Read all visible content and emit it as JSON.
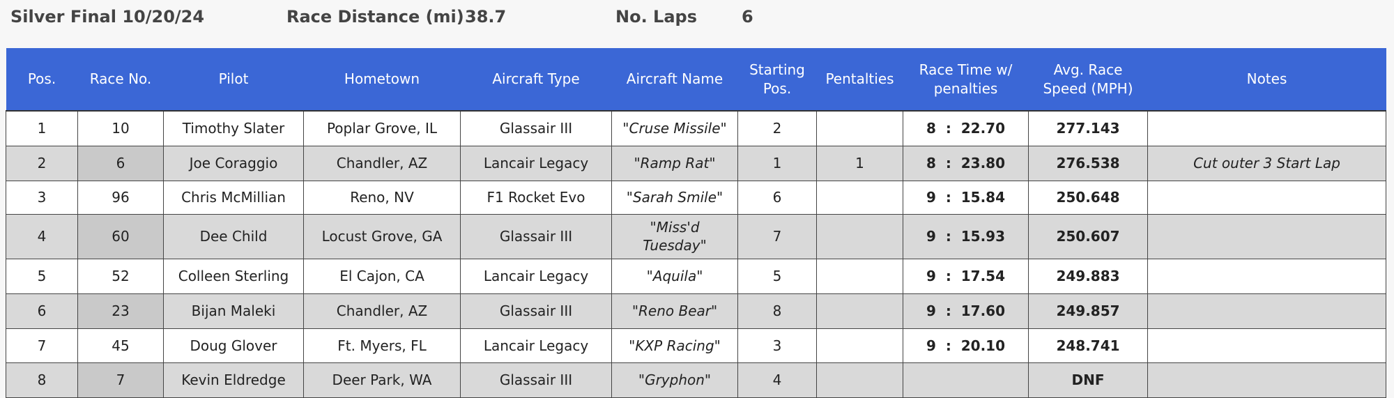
{
  "header": {
    "title": "Silver Final 10/20/24",
    "distance_label": "Race Distance (mi)",
    "distance": "38.7",
    "laps_label": "No. Laps",
    "laps": "6"
  },
  "table": {
    "columns": [
      "Pos.",
      "Race No.",
      "Pilot",
      "Hometown",
      "Aircraft Type",
      "Aircraft Name",
      "Starting Pos.",
      "Pentalties",
      "Race Time w/ penalties",
      "Avg. Race Speed (MPH)",
      "Notes"
    ],
    "rows": [
      [
        1,
        10,
        "Timothy Slater",
        "Poplar Grove, IL",
        "Glassair III",
        "\"Cruse Missile\"",
        2,
        null,
        "8  :  22.70",
        277.143,
        null
      ],
      [
        2,
        6,
        "Joe Coraggio",
        "Chandler, AZ",
        "Lancair Legacy",
        "\"Ramp Rat\"",
        1,
        1,
        "8  :  23.80",
        276.538,
        "Cut outer 3 Start Lap"
      ],
      [
        3,
        96,
        "Chris McMillian",
        "Reno, NV",
        "F1 Rocket Evo",
        "\"Sarah Smile\"",
        6,
        null,
        "9  :  15.84",
        250.648,
        null
      ],
      [
        4,
        60,
        "Dee Child",
        "Locust Grove, GA",
        "Glassair III",
        "\"Miss'd Tuesday\"",
        7,
        null,
        "9  :  15.93",
        250.607,
        null
      ],
      [
        5,
        52,
        "Colleen Sterling",
        "El Cajon, CA",
        "Lancair Legacy",
        "\"Aquila\"",
        5,
        null,
        "9  :  17.54",
        249.883,
        null
      ],
      [
        6,
        23,
        "Bijan Maleki",
        "Chandler, AZ",
        "Glassair III",
        "\"Reno Bear\"",
        8,
        null,
        "9  :  17.60",
        249.857,
        null
      ],
      [
        7,
        45,
        "Doug Glover",
        "Ft. Myers, FL",
        "Lancair Legacy",
        "\"KXP Racing\"",
        3,
        null,
        "9  :  20.10",
        248.741,
        null
      ],
      [
        8,
        7,
        "Kevin Eldredge",
        "Deer Park, WA",
        "Glassair III",
        "\"Gryphon\"",
        4,
        null,
        null,
        "DNF",
        null
      ]
    ]
  }
}
